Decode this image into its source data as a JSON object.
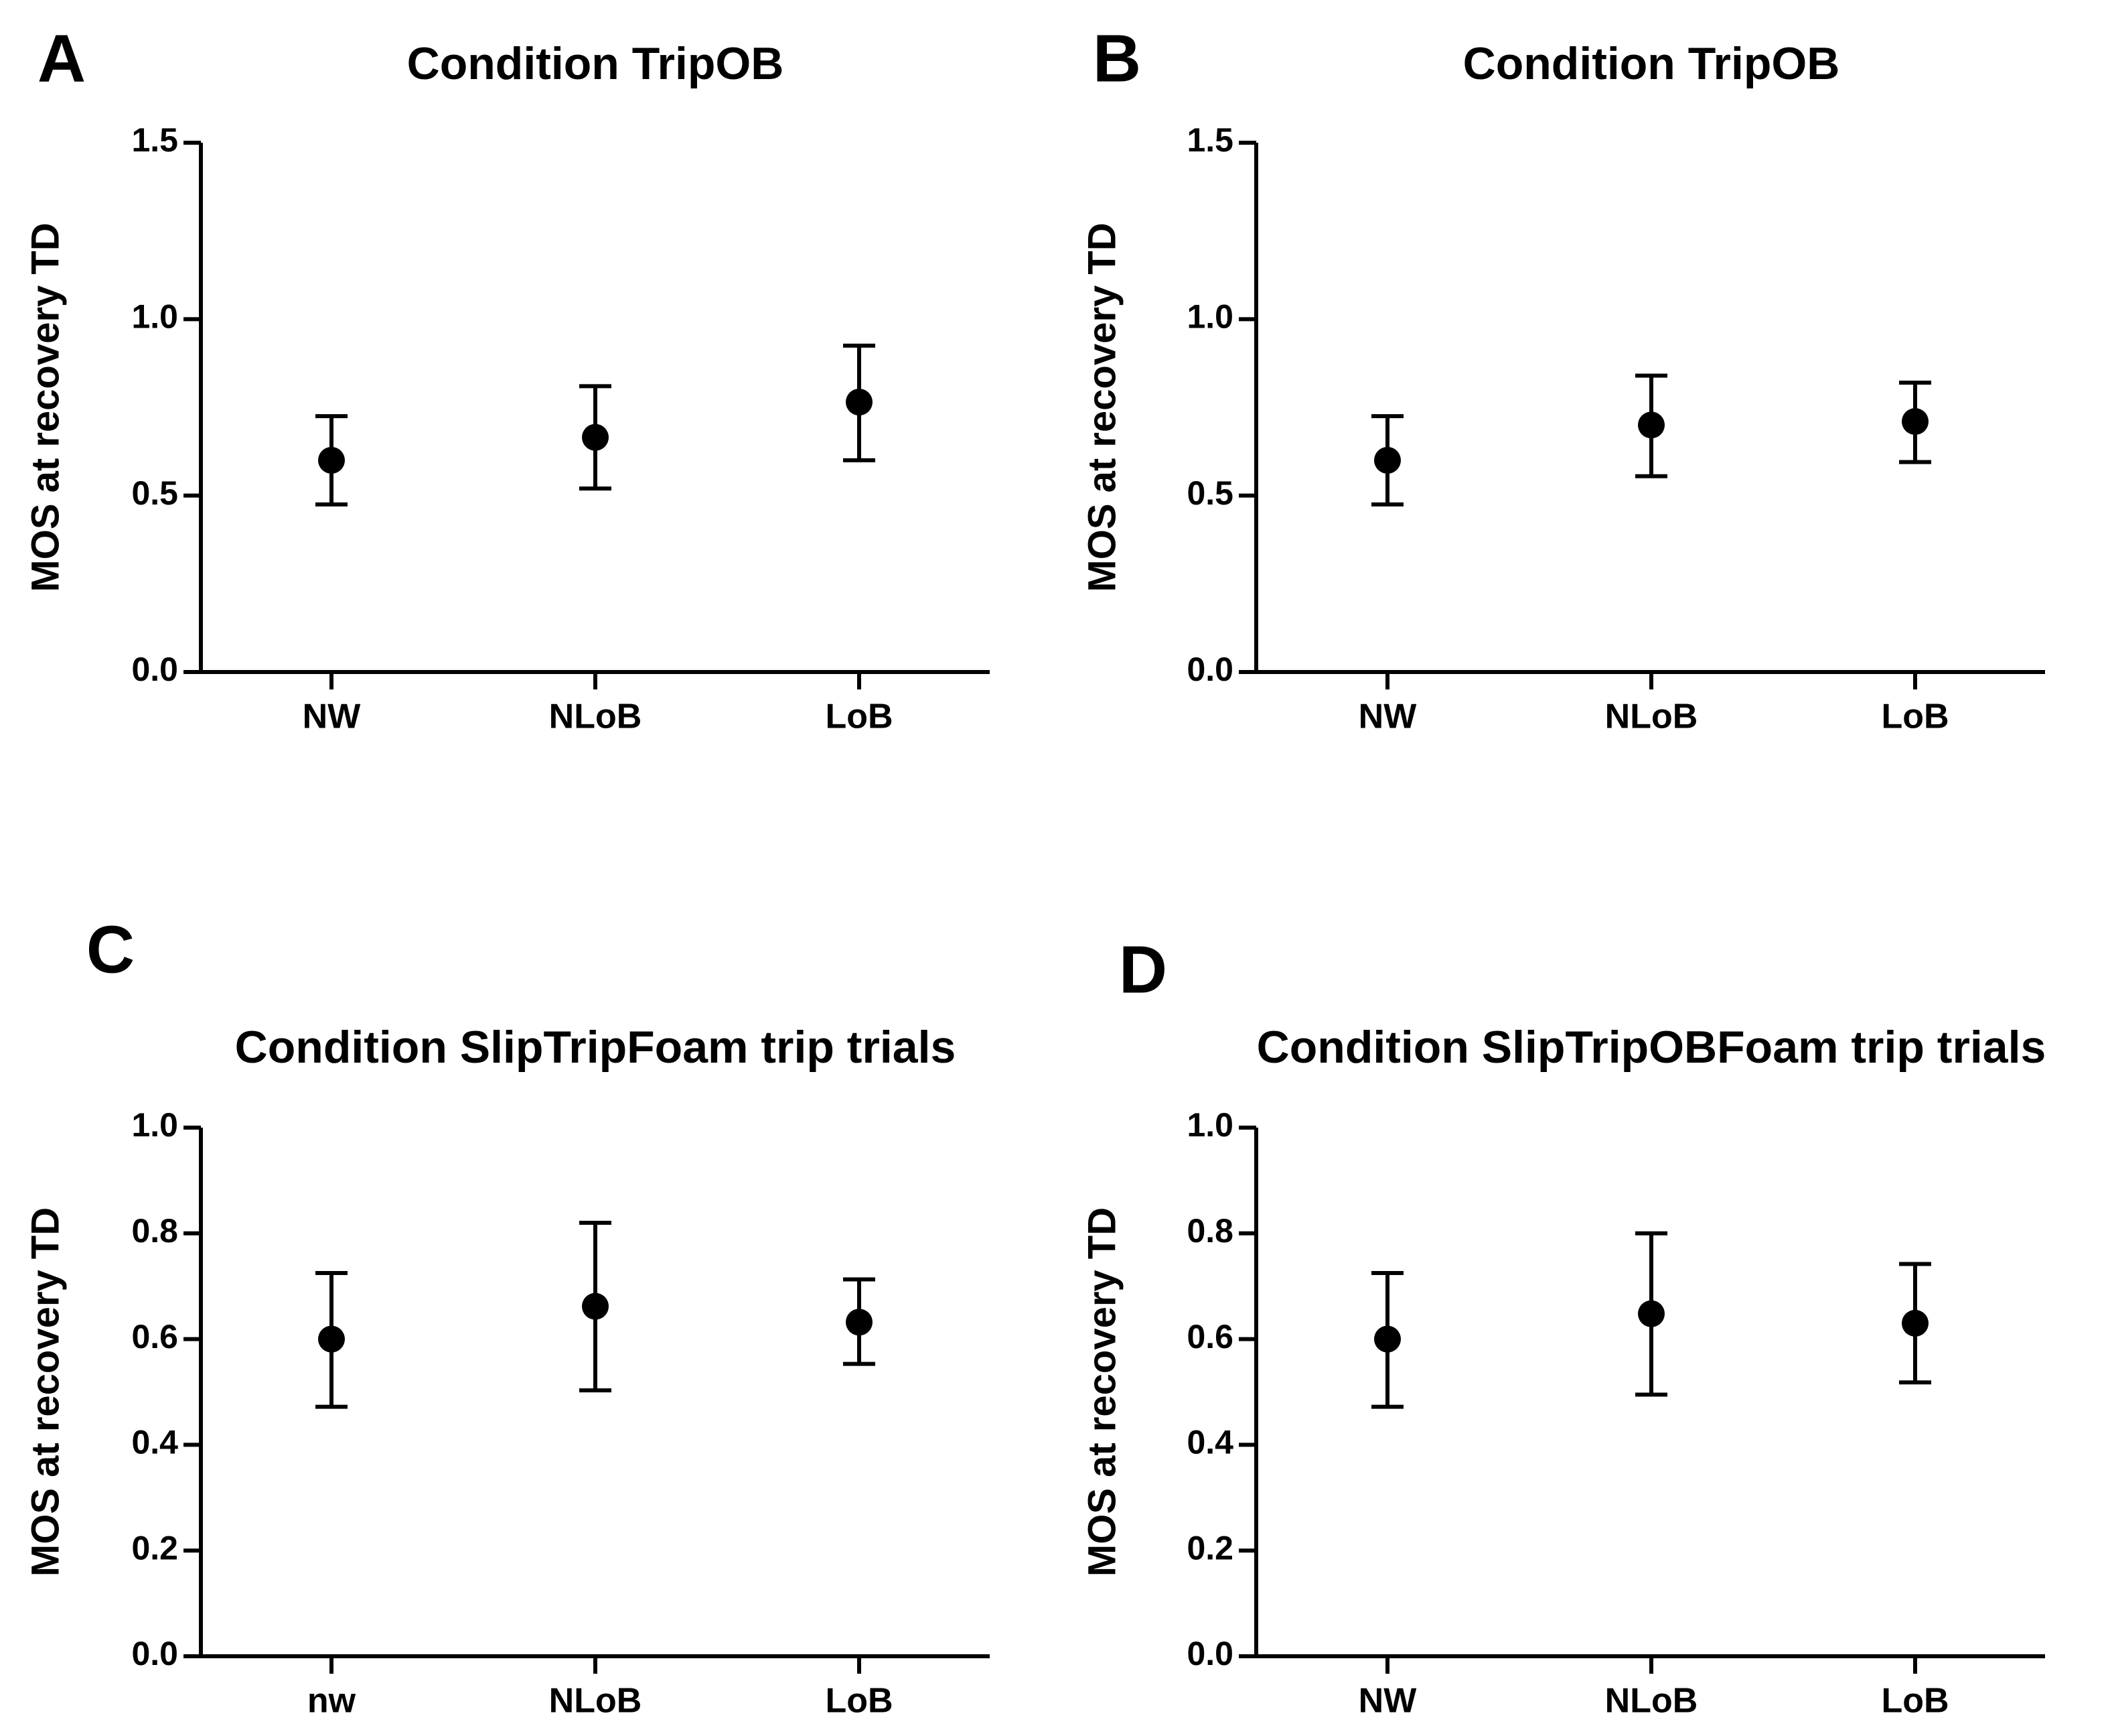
{
  "chart_data": [
    {
      "panel_label": "A",
      "type": "scatter",
      "title": "Condition TripOB",
      "xlabel": "",
      "ylabel": "MOS at recovery TD",
      "categories": [
        "NW",
        "NLoB",
        "LoB"
      ],
      "values": [
        0.6,
        0.665,
        0.765
      ],
      "error_low": [
        0.475,
        0.52,
        0.6
      ],
      "error_high": [
        0.725,
        0.81,
        0.925
      ],
      "ylim": [
        0,
        1.5
      ],
      "yticks": [
        "0.0",
        "0.5",
        "1.0",
        "1.5"
      ]
    },
    {
      "panel_label": "B",
      "type": "scatter",
      "title": "Condition TripOB",
      "xlabel": "",
      "ylabel": "MOS at recovery TD",
      "categories": [
        "NW",
        "NLoB",
        "LoB"
      ],
      "values": [
        0.6,
        0.7,
        0.71
      ],
      "error_low": [
        0.475,
        0.555,
        0.595
      ],
      "error_high": [
        0.725,
        0.84,
        0.82
      ],
      "ylim": [
        0,
        1.5
      ],
      "yticks": [
        "0.0",
        "0.5",
        "1.0",
        "1.5"
      ]
    },
    {
      "panel_label": "C",
      "type": "scatter",
      "title": "Condition SlipTripFoam trip trials",
      "xlabel": "",
      "ylabel": "MOS at recovery TD",
      "categories": [
        "nw",
        "NLoB",
        "LoB"
      ],
      "values": [
        0.6,
        0.662,
        0.632
      ],
      "error_low": [
        0.472,
        0.503,
        0.553
      ],
      "error_high": [
        0.725,
        0.82,
        0.713
      ],
      "ylim": [
        0,
        1.0
      ],
      "yticks": [
        "0.0",
        "0.2",
        "0.4",
        "0.6",
        "0.8",
        "1.0"
      ]
    },
    {
      "panel_label": "D",
      "type": "scatter",
      "title": "Condition SlipTripOBFoam trip trials",
      "xlabel": "",
      "ylabel": "MOS at recovery TD",
      "categories": [
        "NW",
        "NLoB",
        "LoB"
      ],
      "values": [
        0.6,
        0.648,
        0.63
      ],
      "error_low": [
        0.472,
        0.495,
        0.518
      ],
      "error_high": [
        0.725,
        0.8,
        0.742
      ],
      "ylim": [
        0,
        1.0
      ],
      "yticks": [
        "0.0",
        "0.2",
        "0.4",
        "0.6",
        "0.8",
        "1.0"
      ]
    }
  ]
}
